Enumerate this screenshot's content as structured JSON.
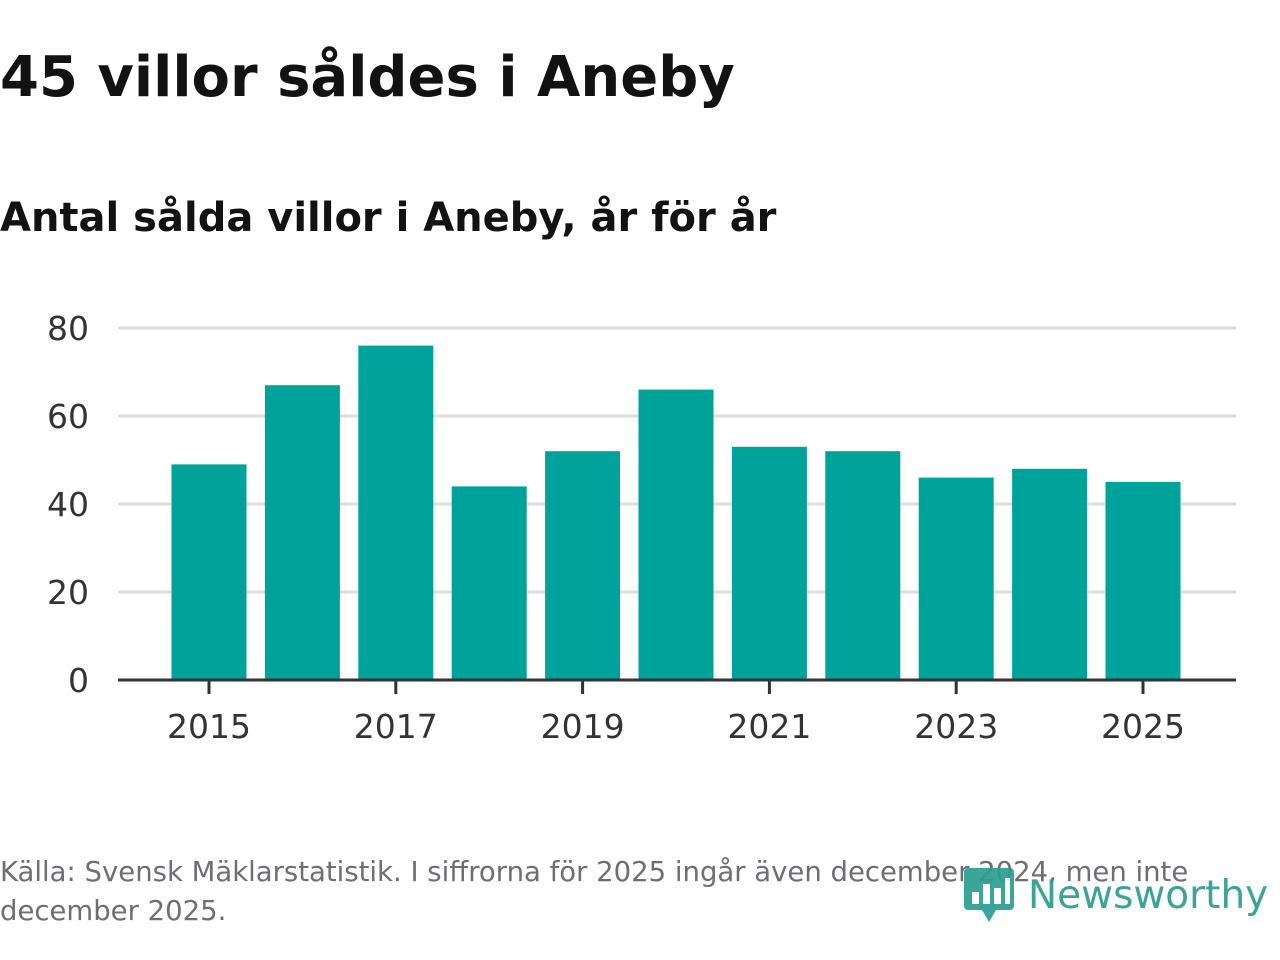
{
  "header": {
    "title": "45 villor såldes i Aneby",
    "subtitle": "Antal sålda villor i Aneby, år för år"
  },
  "footer": {
    "source": "Källa: Svensk Mäklarstatistik. I siffrorna för 2025 ingår även december 2024, men inte december 2025.",
    "logo_text": "Newsworthy"
  },
  "colors": {
    "bar": "#00a39a",
    "grid": "#dddddd",
    "axis": "#333333",
    "logo": "#2a9d8f"
  },
  "chart_data": {
    "type": "bar",
    "title": "45 villor såldes i Aneby",
    "subtitle": "Antal sålda villor i Aneby, år för år",
    "xlabel": "",
    "ylabel": "",
    "categories": [
      2015,
      2016,
      2017,
      2018,
      2019,
      2020,
      2021,
      2022,
      2023,
      2024,
      2025
    ],
    "values": [
      49,
      67,
      76,
      44,
      52,
      66,
      53,
      52,
      46,
      48,
      45
    ],
    "ylim": [
      0,
      80
    ],
    "yticks": [
      0,
      20,
      40,
      60,
      80
    ],
    "xticks": [
      2015,
      2017,
      2019,
      2021,
      2023,
      2025
    ],
    "grid": true,
    "legend": "none"
  }
}
